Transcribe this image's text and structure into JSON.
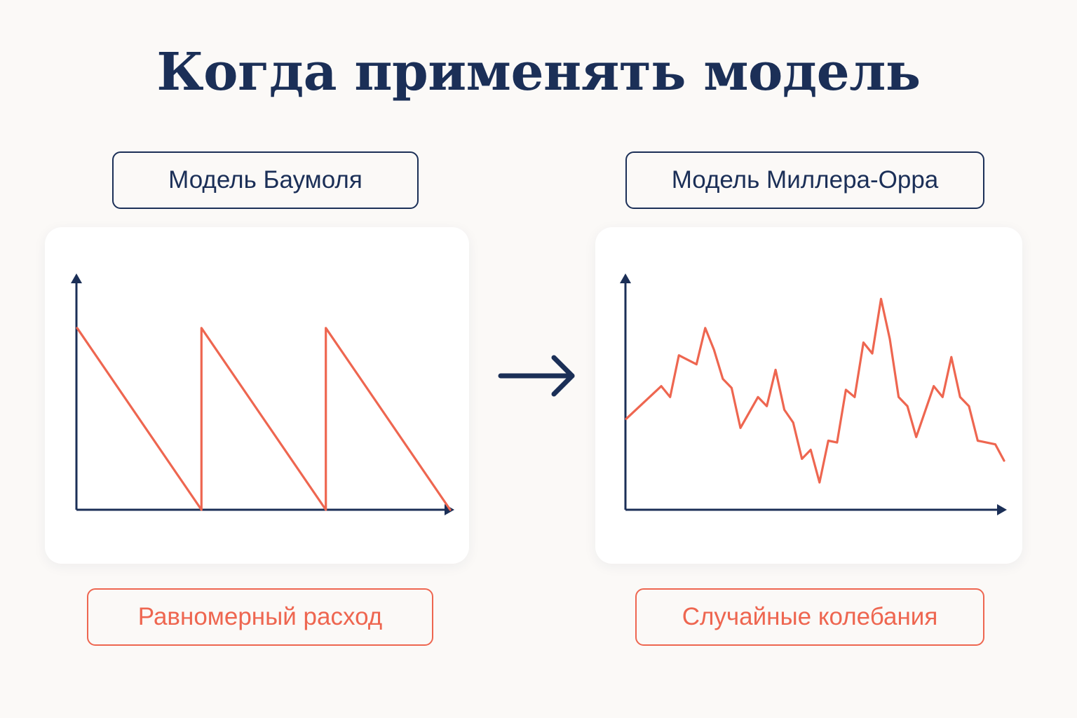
{
  "title": "Когда применять модель",
  "colors": {
    "background": "#fbf9f7",
    "navy": "#1b2f57",
    "coral": "#ee6650",
    "card": "#ffffff"
  },
  "panels": {
    "left": {
      "model_label": "Модель Баумоля",
      "caption": "Равномерный расход",
      "chart_data": {
        "type": "line",
        "pattern": "sawtooth",
        "x": [
          0,
          10,
          10,
          20,
          20,
          30
        ],
        "y": [
          100,
          0,
          100,
          0,
          100,
          0
        ],
        "xlabel": "",
        "ylabel": "",
        "ylim": [
          0,
          130
        ]
      }
    },
    "right": {
      "model_label": "Модель Миллера-Орра",
      "caption": "Случайные колебания",
      "chart_data": {
        "type": "line",
        "pattern": "random-walk",
        "x": [
          0,
          8,
          10,
          12,
          16,
          18,
          20,
          22,
          24,
          26,
          30,
          32,
          34,
          36,
          38,
          40,
          42,
          44,
          46,
          48,
          50,
          52,
          54,
          56,
          58,
          60,
          62,
          64,
          66,
          70,
          72,
          74,
          76,
          78,
          80,
          84,
          86
        ],
        "y": [
          50,
          68,
          62,
          85,
          80,
          100,
          88,
          72,
          67,
          45,
          62,
          57,
          77,
          55,
          48,
          28,
          33,
          15,
          38,
          37,
          66,
          62,
          92,
          86,
          116,
          94,
          62,
          57,
          40,
          68,
          62,
          84,
          62,
          57,
          38,
          36,
          27
        ],
        "xlabel": "",
        "ylabel": "",
        "ylim": [
          0,
          130
        ]
      }
    }
  },
  "arrow_icon": "right-arrow-icon"
}
